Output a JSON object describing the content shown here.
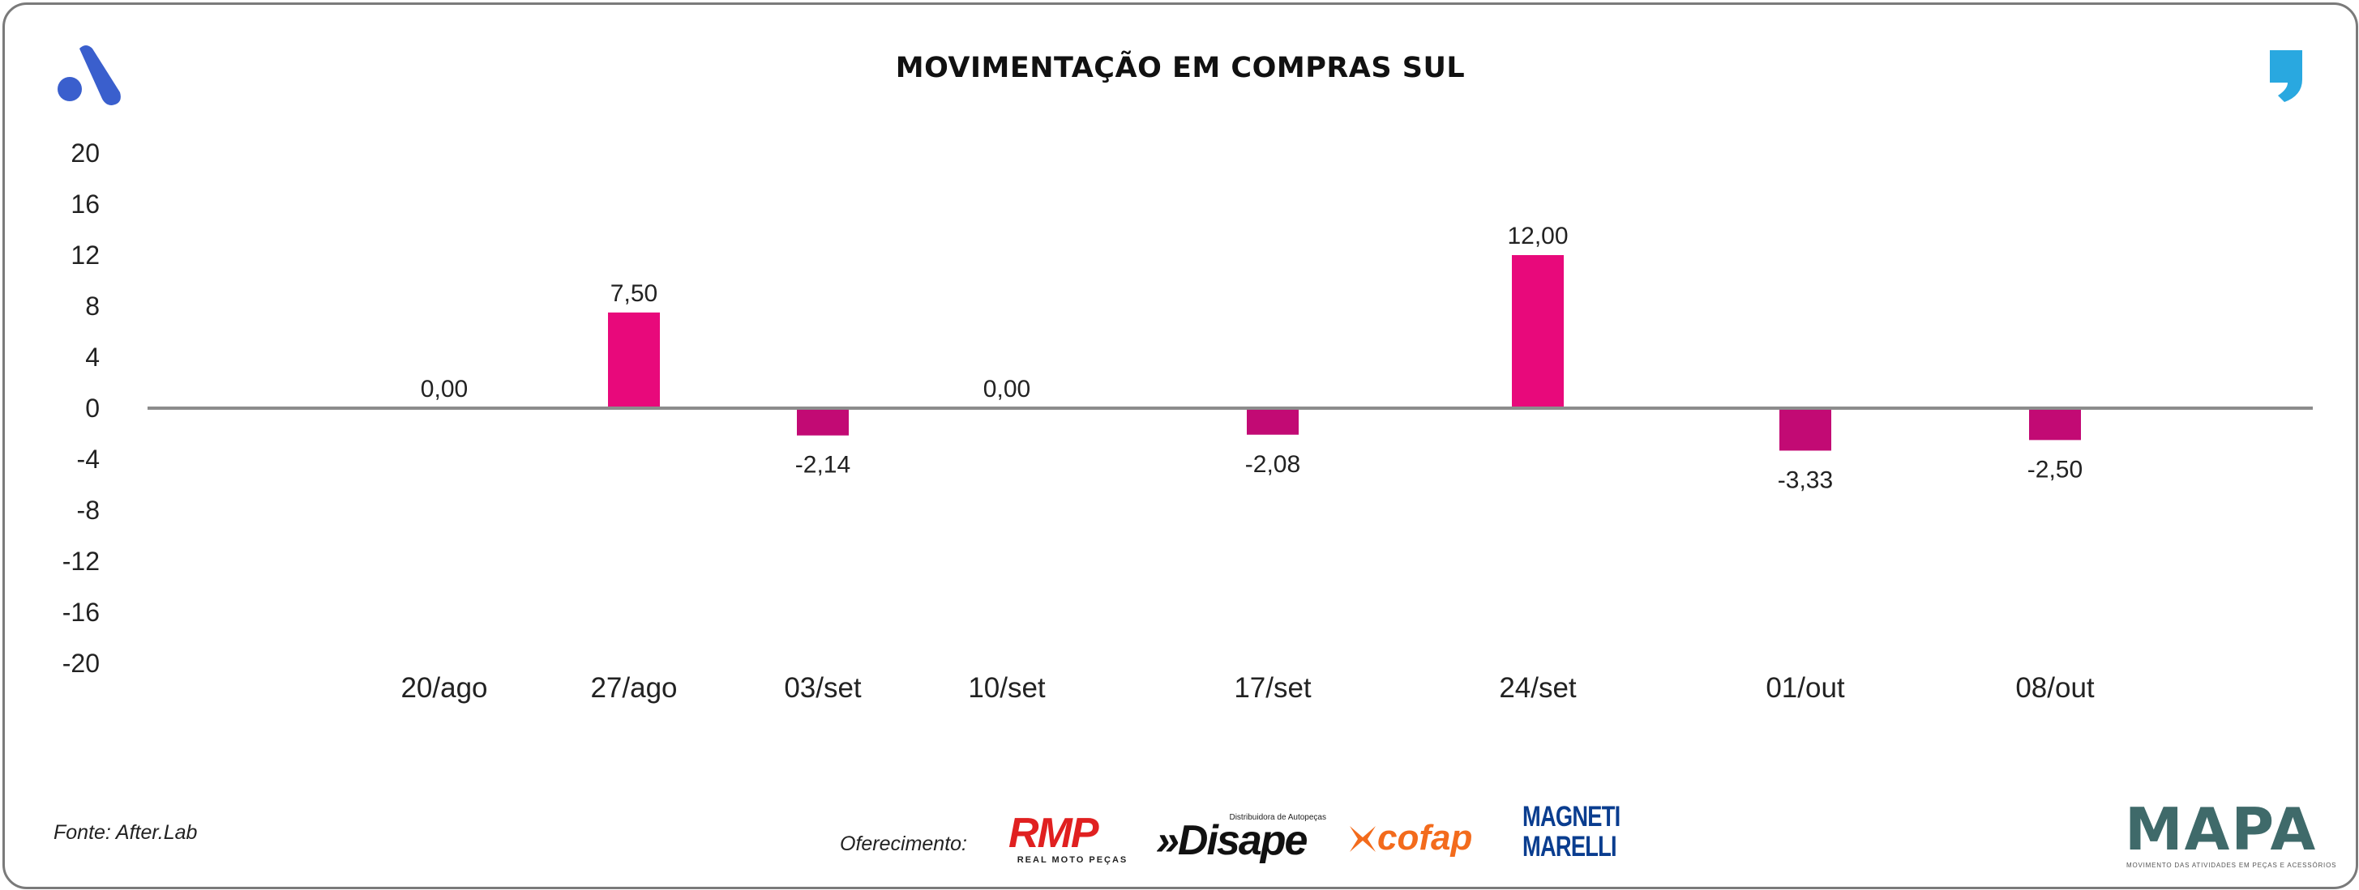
{
  "title": "MOVIMENTAÇÃO EM COMPRAS SUL",
  "source": "Fonte: After.Lab",
  "sponsor_label": "Oferecimento:",
  "sponsors": {
    "rmp": {
      "name": "RMP",
      "tagline": "REAL MOTO PEÇAS"
    },
    "disape": {
      "name": "»Disape",
      "tagline": "Distribuidora de Autopeças"
    },
    "cofap": {
      "name": "cofap"
    },
    "magneti": {
      "line1": "MAGNETI",
      "line2": "MARELLI"
    },
    "mapa": {
      "name": "MAPA",
      "tagline": "MOVIMENTO DAS ATIVIDADES EM PEÇAS E ACESSÓRIOS"
    }
  },
  "icons": {
    "top_left": "after-lab-logo-icon",
    "top_right": "quote-comma-icon"
  },
  "colors": {
    "positive": "#e8097b",
    "negative": "#c20a74",
    "axis": "#8c8c8c",
    "logo_blue": "#3a5fcd",
    "quote_blue": "#29a8e0"
  },
  "chart_data": {
    "type": "bar",
    "title": "MOVIMENTAÇÃO EM COMPRAS SUL",
    "categories": [
      "20/ago",
      "27/ago",
      "03/set",
      "10/set",
      "17/set",
      "24/set",
      "01/out",
      "08/out"
    ],
    "values": [
      0.0,
      7.5,
      -2.14,
      0.0,
      -2.08,
      12.0,
      -3.33,
      -2.5
    ],
    "value_labels": [
      "0,00",
      "7,50",
      "-2,14",
      "0,00",
      "-2,08",
      "12,00",
      "-3,33",
      "-2,50"
    ],
    "yticks": [
      20,
      16,
      12,
      8,
      4,
      0,
      -4,
      -8,
      -12,
      -16,
      -20
    ],
    "ylim": [
      -20,
      20
    ],
    "grid": false,
    "legend": "none"
  }
}
